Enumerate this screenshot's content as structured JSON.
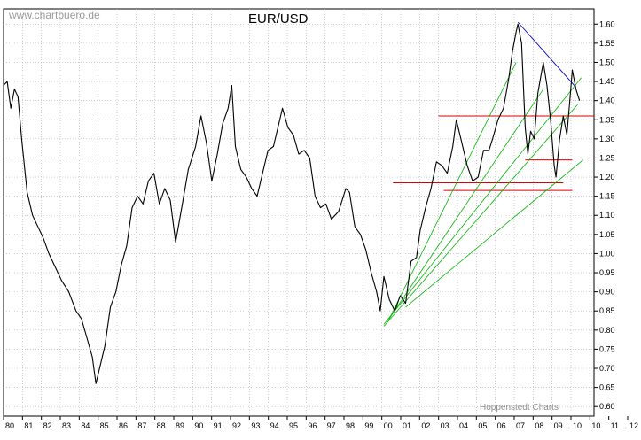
{
  "watermark": "www.chartbuero.de",
  "credit": "Hoppenstedt Charts",
  "colors": {
    "background": "#ffffff",
    "price_line": "#000000",
    "grid": "#b0b0b0",
    "support_lines": "#e00000",
    "trend_fan": "#00b400",
    "top_trendline": "#0000c8"
  },
  "chart_data": {
    "type": "line",
    "title": "EUR/USD",
    "xlabel": "",
    "ylabel": "",
    "xlim": [
      1980,
      2012.6
    ],
    "ylim": [
      0.575,
      1.64
    ],
    "grid": true,
    "y_axis_side": "right",
    "y_ticks": [
      "0.60",
      "0.65",
      "0.70",
      "0.75",
      "0.80",
      "0.85",
      "0.90",
      "0.95",
      "1.00",
      "1.05",
      "1.10",
      "1.15",
      "1.20",
      "1.25",
      "1.30",
      "1.35",
      "1.40",
      "1.45",
      "1.50",
      "1.55",
      "1.60"
    ],
    "x_ticks": [
      "80",
      "81",
      "82",
      "83",
      "84",
      "85",
      "86",
      "87",
      "88",
      "89",
      "90",
      "91",
      "92",
      "93",
      "94",
      "95",
      "96",
      "97",
      "98",
      "99",
      "00",
      "01",
      "02",
      "03",
      "04",
      "05",
      "06",
      "07",
      "08",
      "09",
      "10",
      "10",
      "11",
      "12"
    ],
    "series": [
      {
        "values": [
          [
            1980.0,
            1.44
          ],
          [
            1980.2,
            1.45
          ],
          [
            1980.4,
            1.38
          ],
          [
            1980.6,
            1.43
          ],
          [
            1980.8,
            1.41
          ],
          [
            1981.0,
            1.3
          ],
          [
            1981.3,
            1.16
          ],
          [
            1981.6,
            1.1
          ],
          [
            1981.9,
            1.07
          ],
          [
            1982.2,
            1.04
          ],
          [
            1982.5,
            1.0
          ],
          [
            1982.8,
            0.97
          ],
          [
            1983.2,
            0.93
          ],
          [
            1983.6,
            0.9
          ],
          [
            1984.0,
            0.85
          ],
          [
            1984.3,
            0.83
          ],
          [
            1984.6,
            0.78
          ],
          [
            1984.9,
            0.73
          ],
          [
            1985.1,
            0.66
          ],
          [
            1985.3,
            0.7
          ],
          [
            1985.6,
            0.76
          ],
          [
            1985.9,
            0.86
          ],
          [
            1986.2,
            0.9
          ],
          [
            1986.5,
            0.97
          ],
          [
            1986.8,
            1.02
          ],
          [
            1987.1,
            1.12
          ],
          [
            1987.4,
            1.15
          ],
          [
            1987.7,
            1.13
          ],
          [
            1988.0,
            1.19
          ],
          [
            1988.3,
            1.21
          ],
          [
            1988.6,
            1.13
          ],
          [
            1988.9,
            1.17
          ],
          [
            1989.2,
            1.14
          ],
          [
            1989.5,
            1.03
          ],
          [
            1989.8,
            1.11
          ],
          [
            1990.2,
            1.22
          ],
          [
            1990.6,
            1.28
          ],
          [
            1990.9,
            1.36
          ],
          [
            1991.2,
            1.29
          ],
          [
            1991.5,
            1.19
          ],
          [
            1991.8,
            1.26
          ],
          [
            1992.1,
            1.34
          ],
          [
            1992.4,
            1.38
          ],
          [
            1992.6,
            1.44
          ],
          [
            1992.8,
            1.28
          ],
          [
            1993.1,
            1.22
          ],
          [
            1993.4,
            1.2
          ],
          [
            1993.7,
            1.17
          ],
          [
            1994.0,
            1.15
          ],
          [
            1994.3,
            1.21
          ],
          [
            1994.6,
            1.27
          ],
          [
            1994.9,
            1.28
          ],
          [
            1995.2,
            1.34
          ],
          [
            1995.4,
            1.38
          ],
          [
            1995.7,
            1.33
          ],
          [
            1996.0,
            1.31
          ],
          [
            1996.3,
            1.26
          ],
          [
            1996.6,
            1.27
          ],
          [
            1996.9,
            1.25
          ],
          [
            1997.2,
            1.15
          ],
          [
            1997.5,
            1.12
          ],
          [
            1997.8,
            1.13
          ],
          [
            1998.1,
            1.09
          ],
          [
            1998.5,
            1.11
          ],
          [
            1998.9,
            1.17
          ],
          [
            1999.1,
            1.16
          ],
          [
            1999.4,
            1.07
          ],
          [
            1999.7,
            1.05
          ],
          [
            2000.0,
            1.01
          ],
          [
            2000.3,
            0.95
          ],
          [
            2000.6,
            0.9
          ],
          [
            2000.8,
            0.85
          ],
          [
            2001.0,
            0.94
          ],
          [
            2001.3,
            0.88
          ],
          [
            2001.6,
            0.85
          ],
          [
            2001.9,
            0.89
          ],
          [
            2002.2,
            0.87
          ],
          [
            2002.5,
            0.98
          ],
          [
            2002.8,
            0.99
          ],
          [
            2003.0,
            1.06
          ],
          [
            2003.3,
            1.12
          ],
          [
            2003.6,
            1.17
          ],
          [
            2003.9,
            1.24
          ],
          [
            2004.2,
            1.23
          ],
          [
            2004.5,
            1.21
          ],
          [
            2004.8,
            1.28
          ],
          [
            2005.0,
            1.35
          ],
          [
            2005.3,
            1.29
          ],
          [
            2005.6,
            1.23
          ],
          [
            2005.9,
            1.19
          ],
          [
            2006.2,
            1.2
          ],
          [
            2006.5,
            1.27
          ],
          [
            2006.8,
            1.27
          ],
          [
            2007.0,
            1.3
          ],
          [
            2007.3,
            1.35
          ],
          [
            2007.6,
            1.38
          ],
          [
            2007.9,
            1.46
          ],
          [
            2008.1,
            1.53
          ],
          [
            2008.3,
            1.58
          ],
          [
            2008.4,
            1.6
          ],
          [
            2008.6,
            1.55
          ],
          [
            2008.8,
            1.33
          ],
          [
            2008.95,
            1.26
          ],
          [
            2009.1,
            1.32
          ],
          [
            2009.3,
            1.3
          ],
          [
            2009.5,
            1.42
          ],
          [
            2009.8,
            1.5
          ],
          [
            2010.0,
            1.44
          ],
          [
            2010.2,
            1.35
          ],
          [
            2010.4,
            1.23
          ],
          [
            2010.5,
            1.2
          ],
          [
            2010.7,
            1.3
          ],
          [
            2010.9,
            1.36
          ],
          [
            2011.1,
            1.31
          ],
          [
            2011.3,
            1.42
          ],
          [
            2011.4,
            1.48
          ],
          [
            2011.6,
            1.43
          ],
          [
            2011.8,
            1.4
          ]
        ]
      }
    ],
    "overlays": {
      "horizontal_red": [
        {
          "y": 1.36,
          "x0": 2004.0,
          "x1": 2012.6
        },
        {
          "y": 1.185,
          "x0": 2001.5,
          "x1": 2010.9
        },
        {
          "y": 1.245,
          "x0": 2008.8,
          "x1": 2011.4
        },
        {
          "y": 1.165,
          "x0": 2004.3,
          "x1": 2011.4
        }
      ],
      "green_fan": [
        {
          "x0": 2001.0,
          "y0": 0.815,
          "x1": 2011.9,
          "y1": 1.46
        },
        {
          "x0": 2001.2,
          "y0": 0.82,
          "x1": 2008.3,
          "y1": 1.5
        },
        {
          "x0": 2001.3,
          "y0": 0.83,
          "x1": 2009.8,
          "y1": 1.43
        },
        {
          "x0": 2001.0,
          "y0": 0.81,
          "x1": 2011.7,
          "y1": 1.39
        },
        {
          "x0": 2002.2,
          "y0": 0.86,
          "x1": 2012.0,
          "y1": 1.245
        }
      ],
      "blue_line": [
        {
          "x0": 2008.4,
          "y0": 1.605,
          "x1": 2011.6,
          "y1": 1.435
        }
      ]
    }
  }
}
